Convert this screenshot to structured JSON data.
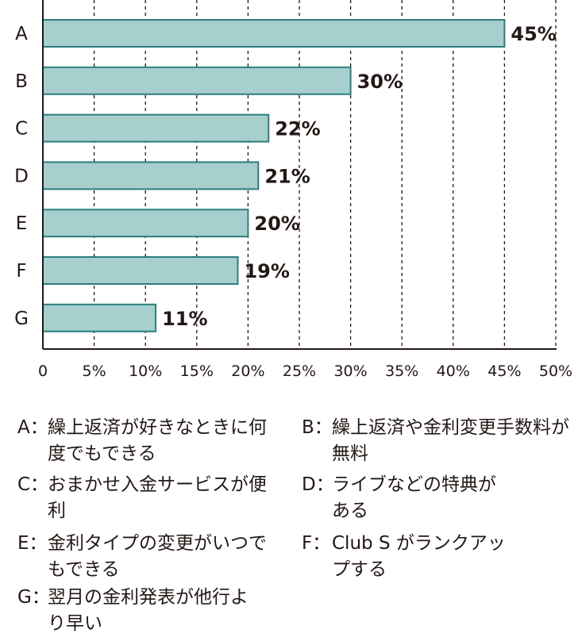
{
  "chart_data": {
    "type": "bar",
    "orientation": "horizontal",
    "categories": [
      "A",
      "B",
      "C",
      "D",
      "E",
      "F",
      "G"
    ],
    "values": [
      45,
      30,
      22,
      21,
      20,
      19,
      11
    ],
    "value_labels": [
      "45%",
      "30%",
      "22%",
      "21%",
      "20%",
      "19%",
      "11%"
    ],
    "x_ticks": [
      "0",
      "5%",
      "10%",
      "15%",
      "20%",
      "25%",
      "30%",
      "35%",
      "40%",
      "45%",
      "50%"
    ],
    "xlim": [
      0,
      50
    ],
    "grid": "vertical dashed",
    "title": "",
    "xlabel": "",
    "ylabel": ""
  },
  "colors": {
    "bar_fill": "#a6cfcd",
    "bar_stroke": "#2c7e7f",
    "axis": "#231815",
    "grid": "#231815",
    "text": "#231815"
  },
  "legend": [
    {
      "key": "A：",
      "text": "繰上返済が好きなときに何度でもできる"
    },
    {
      "key": "B：",
      "text": "繰上返済や金利変更手数料が無料"
    },
    {
      "key": "C：",
      "text": "おまかせ入金サービスが便利"
    },
    {
      "key": "D：",
      "text": "ライブなどの特典がある"
    },
    {
      "key": "E：",
      "text": "金利タイプの変更がいつでもできる"
    },
    {
      "key": "F：",
      "text": "Club S がランクアップする"
    },
    {
      "key": "G：",
      "text": "翌月の金利発表が他行より早い"
    }
  ]
}
